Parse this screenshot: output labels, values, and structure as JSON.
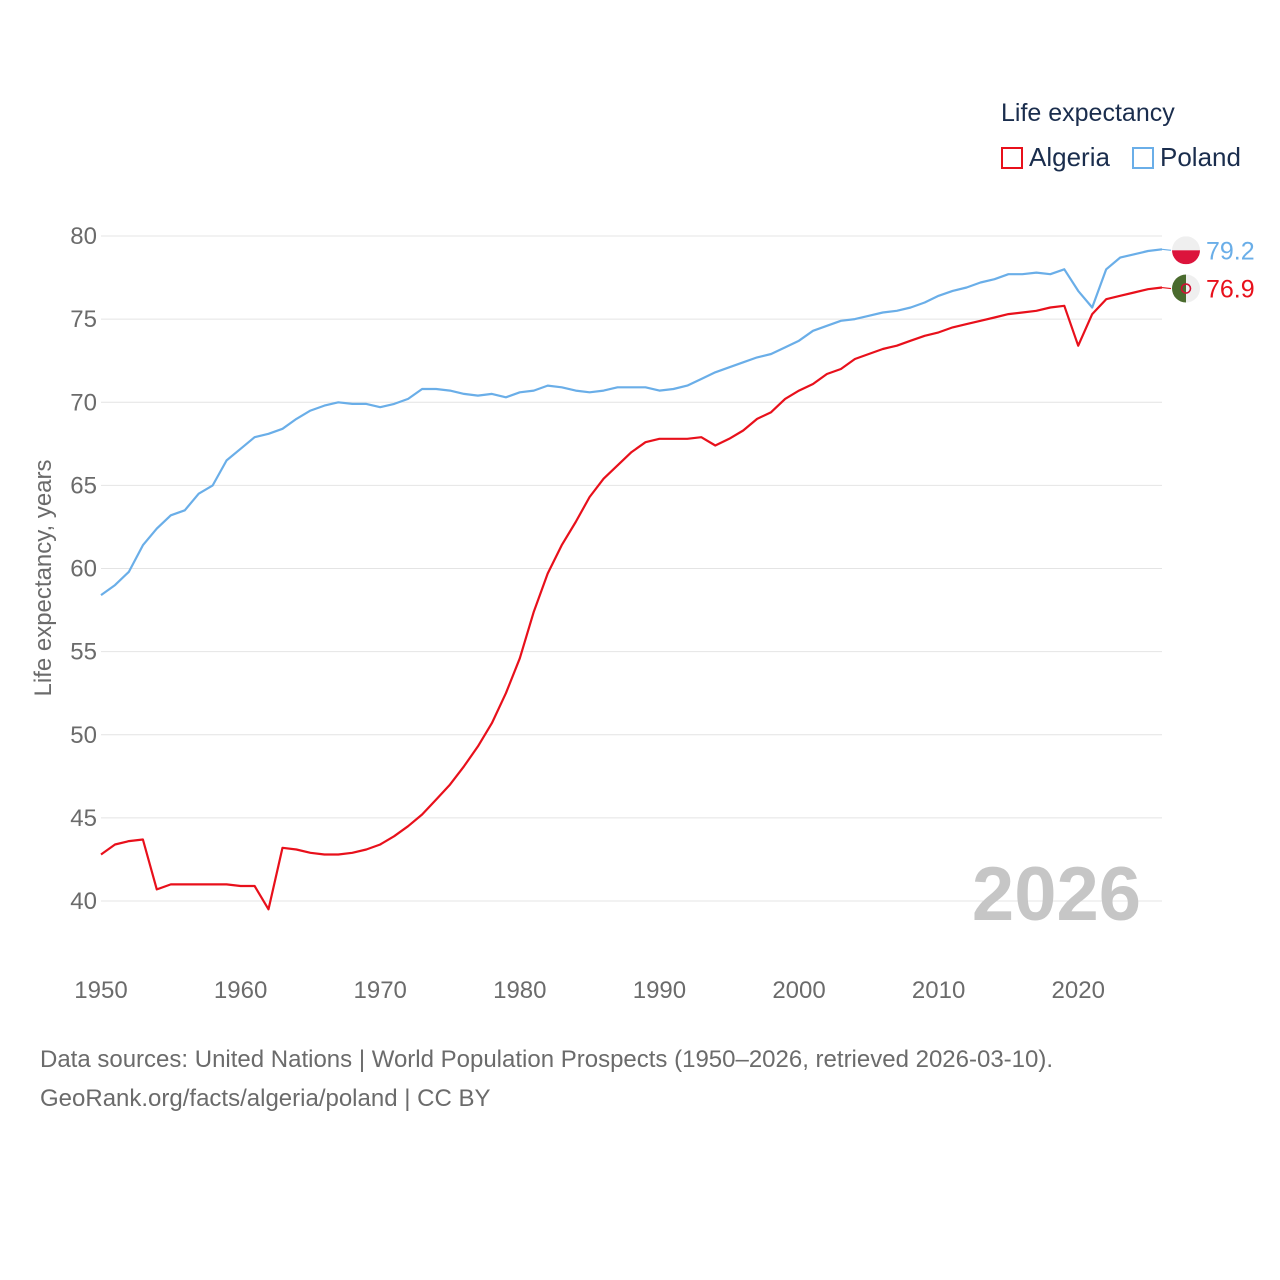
{
  "legend": {
    "title": "Life expectancy",
    "items": [
      {
        "label": "Algeria",
        "color": "#e8101b"
      },
      {
        "label": "Poland",
        "color": "#6aaee8"
      }
    ]
  },
  "source": {
    "line1": "Data sources: United Nations | World Population Prospects (1950–2026, retrieved 2026-03-10).",
    "line2": "GeoRank.org/facts/algeria/poland | CC BY"
  },
  "chart_data": {
    "type": "line",
    "ylabel": "Life expectancy, years",
    "xlabel": "",
    "year_label": "2026",
    "xlim": [
      1950,
      2026
    ],
    "ylim": [
      40,
      80
    ],
    "x_ticks": [
      "1950",
      "1960",
      "1970",
      "1980",
      "1990",
      "2000",
      "2010",
      "2020"
    ],
    "y_ticks": [
      "40",
      "45",
      "50",
      "55",
      "60",
      "65",
      "70",
      "75",
      "80"
    ],
    "x": [
      1950,
      1951,
      1952,
      1953,
      1954,
      1955,
      1956,
      1957,
      1958,
      1959,
      1960,
      1961,
      1962,
      1963,
      1964,
      1965,
      1966,
      1967,
      1968,
      1969,
      1970,
      1971,
      1972,
      1973,
      1974,
      1975,
      1976,
      1977,
      1978,
      1979,
      1980,
      1981,
      1982,
      1983,
      1984,
      1985,
      1986,
      1987,
      1988,
      1989,
      1990,
      1991,
      1992,
      1993,
      1994,
      1995,
      1996,
      1997,
      1998,
      1999,
      2000,
      2001,
      2002,
      2003,
      2004,
      2005,
      2006,
      2007,
      2008,
      2009,
      2010,
      2011,
      2012,
      2013,
      2014,
      2015,
      2016,
      2017,
      2018,
      2019,
      2020,
      2021,
      2022,
      2023,
      2024,
      2025,
      2026
    ],
    "series": [
      {
        "name": "Algeria",
        "color": "#e8101b",
        "end_label": "76.9",
        "flag": "algeria-flag",
        "values": [
          42.8,
          43.4,
          43.6,
          43.7,
          40.7,
          41.0,
          41.0,
          41.0,
          41.0,
          41.0,
          40.9,
          40.9,
          39.5,
          43.2,
          43.1,
          42.9,
          42.8,
          42.8,
          42.9,
          43.1,
          43.4,
          43.9,
          44.5,
          45.2,
          46.1,
          47.0,
          48.1,
          49.3,
          50.7,
          52.5,
          54.6,
          57.4,
          59.7,
          61.4,
          62.8,
          64.3,
          65.4,
          66.2,
          67.0,
          67.6,
          67.8,
          67.8,
          67.8,
          67.9,
          67.4,
          67.8,
          68.3,
          69.0,
          69.4,
          70.2,
          70.7,
          71.1,
          71.7,
          72.0,
          72.6,
          72.9,
          73.2,
          73.4,
          73.7,
          74.0,
          74.2,
          74.5,
          74.7,
          74.9,
          75.1,
          75.3,
          75.4,
          75.5,
          75.7,
          75.8,
          73.4,
          75.3,
          76.2,
          76.4,
          76.6,
          76.8,
          76.9
        ]
      },
      {
        "name": "Poland",
        "color": "#6aaee8",
        "end_label": "79.2",
        "flag": "poland-flag",
        "values": [
          58.4,
          59.0,
          59.8,
          61.4,
          62.4,
          63.2,
          63.5,
          64.5,
          65.0,
          66.5,
          67.2,
          67.9,
          68.1,
          68.4,
          69.0,
          69.5,
          69.8,
          70.0,
          69.9,
          69.9,
          69.7,
          69.9,
          70.2,
          70.8,
          70.8,
          70.7,
          70.5,
          70.4,
          70.5,
          70.3,
          70.6,
          70.7,
          71.0,
          70.9,
          70.7,
          70.6,
          70.7,
          70.9,
          70.9,
          70.9,
          70.7,
          70.8,
          71.0,
          71.4,
          71.8,
          72.1,
          72.4,
          72.7,
          72.9,
          73.3,
          73.7,
          74.3,
          74.6,
          74.9,
          75.0,
          75.2,
          75.4,
          75.5,
          75.7,
          76.0,
          76.4,
          76.7,
          76.9,
          77.2,
          77.4,
          77.7,
          77.7,
          77.8,
          77.7,
          78.0,
          76.7,
          75.7,
          78.0,
          78.7,
          78.9,
          79.1,
          79.2
        ]
      }
    ]
  }
}
